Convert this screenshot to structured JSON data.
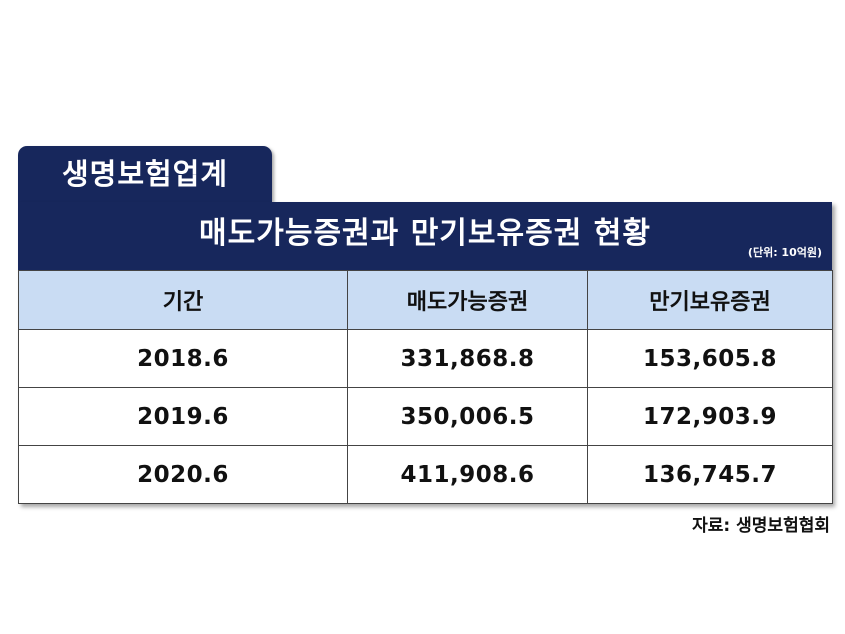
{
  "tag_label": "생명보험업계",
  "title": "매도가능증권과 만기보유증권 현황",
  "unit": "(단위: 10억원)",
  "source": "자료: 생명보험협회",
  "chart_data": {
    "type": "table",
    "title": "매도가능증권과 만기보유증권 현황",
    "columns": [
      "기간",
      "매도가능증권",
      "만기보유증권"
    ],
    "rows": [
      [
        "2018.6",
        "331,868.8",
        "153,605.8"
      ],
      [
        "2019.6",
        "350,006.5",
        "172,903.9"
      ],
      [
        "2020.6",
        "411,908.6",
        "136,745.7"
      ]
    ]
  },
  "colors": {
    "header_navy": "#17275c",
    "column_header_bg": "#c9dcf3"
  }
}
